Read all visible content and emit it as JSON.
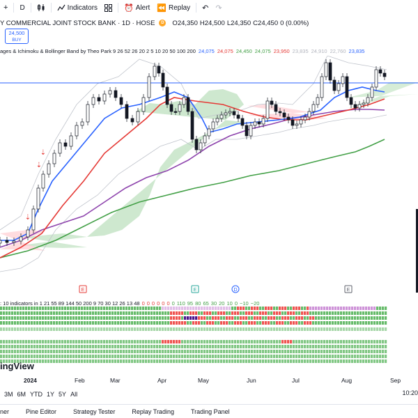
{
  "toolbar": {
    "interval": "D",
    "indicators_label": "Indicators",
    "alert_label": "Alert",
    "replay_label": "Replay"
  },
  "symbol": {
    "name": "Y COMMERCIAL JOINT STOCK BANK · 1D · HOSE",
    "session_badge": "D",
    "open_label": "O",
    "open": "24,350",
    "high_label": "H",
    "high": "24,500",
    "low_label": "L",
    "low": "24,350",
    "close_label": "C",
    "close": "24,450",
    "change": "0 (0.00%)"
  },
  "buy": {
    "price": "24,500",
    "label": "BUY"
  },
  "indicator_legend": {
    "title": "ages & Ichimoku & Bollinger Band by Theo Park 9 26 52 26 20 2 5 10 20 50 100 200",
    "values": [
      {
        "text": "24,075",
        "color": "#2962ff"
      },
      {
        "text": "24,075",
        "color": "#e53935"
      },
      {
        "text": "24,450",
        "color": "#43a047"
      },
      {
        "text": "24,075",
        "color": "#43a047"
      },
      {
        "text": "23,950",
        "color": "#e53935"
      },
      {
        "text": "23,835",
        "color": "#b2b5be"
      },
      {
        "text": "24,910",
        "color": "#b2b5be"
      },
      {
        "text": "22,760",
        "color": "#b2b5be"
      },
      {
        "text": "23,835",
        "color": "#2962ff"
      }
    ]
  },
  "oscillator_legend": {
    "title": ": 10 indicators in 1 21 55 89 144 50 200 9 70 30 12 26 13 48",
    "values": [
      {
        "text": "0",
        "color": "#e53935"
      },
      {
        "text": "0",
        "color": "#e53935"
      },
      {
        "text": "0",
        "color": "#e53935"
      },
      {
        "text": "0",
        "color": "#e53935"
      },
      {
        "text": "0",
        "color": "#e53935"
      },
      {
        "text": "0",
        "color": "#e53935"
      },
      {
        "text": "0",
        "color": "#43a047"
      },
      {
        "text": "110",
        "color": "#43a047"
      },
      {
        "text": "95",
        "color": "#43a047"
      },
      {
        "text": "80",
        "color": "#43a047"
      },
      {
        "text": "65",
        "color": "#43a047"
      },
      {
        "text": "30",
        "color": "#43a047"
      },
      {
        "text": "20",
        "color": "#43a047"
      },
      {
        "text": "10",
        "color": "#43a047"
      },
      {
        "text": "0",
        "color": "#43a047"
      },
      {
        "text": "−10",
        "color": "#43a047"
      },
      {
        "text": "−20",
        "color": "#43a047"
      }
    ]
  },
  "event_markers": [
    {
      "label": "E",
      "color": "#e53935"
    },
    {
      "label": "E",
      "color": "#26a69a"
    },
    {
      "label": "D",
      "color": "#2962ff"
    },
    {
      "label": "E",
      "color": "#5d606b"
    }
  ],
  "brand": "ingView",
  "time_axis": [
    "2024",
    "Feb",
    "Mar",
    "Apr",
    "May",
    "Jun",
    "Jul",
    "Aug",
    "Sep"
  ],
  "range_buttons": [
    "3M",
    "6M",
    "YTD",
    "1Y",
    "5Y",
    "All"
  ],
  "clock": "10:20",
  "bottom_tabs": [
    "ner",
    "Pine Editor",
    "Strategy Tester",
    "Replay Trading",
    "Trading Panel"
  ],
  "colors": {
    "up": "#131722",
    "ema_fast": "#2962ff",
    "ema_mid": "#e53935",
    "ema_slow": "#8e44ad",
    "ema_long": "#43a047",
    "cloud": "#a5d6a7",
    "cloud_bear": "#ffcdd2",
    "price_line": "#2962ff"
  }
}
